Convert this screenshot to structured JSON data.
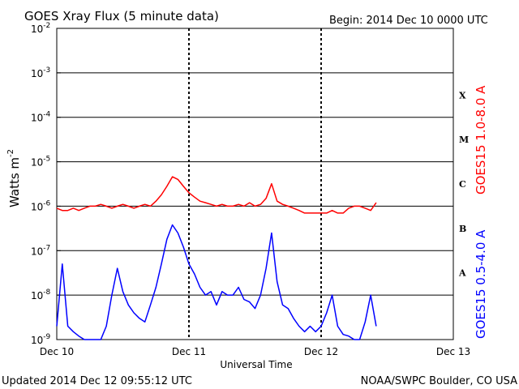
{
  "chart_data": {
    "type": "line",
    "title": "GOES Xray Flux (5 minute data)",
    "begin": "Begin:  2014 Dec 10 0000 UTC",
    "xlabel": "Universal Time",
    "ylabel": "Watts m",
    "ylabel_exp": "-2",
    "x_ticks": [
      "Dec 10",
      "Dec 11",
      "Dec 12",
      "Dec 13"
    ],
    "y_scale": "log",
    "ylim": [
      1e-09,
      0.01
    ],
    "y_ticks": [
      {
        "base": "10",
        "exp": "-2"
      },
      {
        "base": "10",
        "exp": "-3"
      },
      {
        "base": "10",
        "exp": "-4"
      },
      {
        "base": "10",
        "exp": "-5"
      },
      {
        "base": "10",
        "exp": "-6"
      },
      {
        "base": "10",
        "exp": "-7"
      },
      {
        "base": "10",
        "exp": "-8"
      },
      {
        "base": "10",
        "exp": "-9"
      }
    ],
    "flare_classes": [
      "X",
      "M",
      "C",
      "B",
      "A"
    ],
    "grid": "horizontal at each decade, dashed vertical at day boundaries",
    "series": [
      {
        "name": "GOES15 1.0-8.0 A",
        "color": "#ff0000",
        "x_hours": [
          0,
          1,
          2,
          3,
          4,
          5,
          6,
          7,
          8,
          9,
          10,
          11,
          12,
          13,
          14,
          15,
          16,
          17,
          18,
          19,
          20,
          21,
          22,
          23,
          24,
          25,
          26,
          27,
          28,
          29,
          30,
          31,
          32,
          33,
          34,
          35,
          36,
          37,
          38,
          39,
          40,
          41,
          42,
          43,
          44,
          45,
          46,
          47,
          48,
          49,
          50,
          51,
          52,
          53,
          54,
          55,
          56,
          57,
          58
        ],
        "values": [
          9e-07,
          8e-07,
          8e-07,
          9e-07,
          8e-07,
          9e-07,
          1e-06,
          1e-06,
          1.1e-06,
          1e-06,
          9e-07,
          1e-06,
          1.1e-06,
          1e-06,
          9e-07,
          1e-06,
          1.1e-06,
          1e-06,
          1.3e-06,
          1.8e-06,
          2.8e-06,
          4.6e-06,
          4e-06,
          2.8e-06,
          2e-06,
          1.6e-06,
          1.3e-06,
          1.2e-06,
          1.1e-06,
          1e-06,
          1.1e-06,
          1e-06,
          1e-06,
          1.1e-06,
          1e-06,
          1.2e-06,
          1e-06,
          1.1e-06,
          1.5e-06,
          3.2e-06,
          1.3e-06,
          1.1e-06,
          1e-06,
          9e-07,
          8e-07,
          7e-07,
          7e-07,
          7e-07,
          7e-07,
          7e-07,
          8e-07,
          7e-07,
          7e-07,
          9e-07,
          1e-06,
          1e-06,
          9e-07,
          8e-07,
          1.2e-06
        ]
      },
      {
        "name": "GOES15 0.5-4.0 A",
        "color": "#0000ff",
        "x_hours": [
          0,
          1,
          2,
          3,
          4,
          5,
          6,
          7,
          8,
          9,
          10,
          11,
          12,
          13,
          14,
          15,
          16,
          17,
          18,
          19,
          20,
          21,
          22,
          23,
          24,
          25,
          26,
          27,
          28,
          29,
          30,
          31,
          32,
          33,
          34,
          35,
          36,
          37,
          38,
          39,
          40,
          41,
          42,
          43,
          44,
          45,
          46,
          47,
          48,
          49,
          50,
          51,
          52,
          53,
          54,
          55,
          56,
          57,
          58
        ],
        "values": [
          2e-09,
          5e-08,
          2e-09,
          1.5e-09,
          1.2e-09,
          1e-09,
          1e-09,
          1e-09,
          1e-09,
          2e-09,
          1e-08,
          4e-08,
          1.2e-08,
          6e-09,
          4e-09,
          3e-09,
          2.5e-09,
          6e-09,
          1.5e-08,
          5e-08,
          1.8e-07,
          3.8e-07,
          2.5e-07,
          1.2e-07,
          5e-08,
          3e-08,
          1.5e-08,
          1e-08,
          1.2e-08,
          6e-09,
          1.2e-08,
          1e-08,
          1e-08,
          1.5e-08,
          8e-09,
          7e-09,
          5e-09,
          1e-08,
          4e-08,
          2.5e-07,
          2e-08,
          6e-09,
          5e-09,
          3e-09,
          2e-09,
          1.5e-09,
          2e-09,
          1.5e-09,
          2e-09,
          4e-09,
          1e-08,
          2e-09,
          1.3e-09,
          1.2e-09,
          1e-09,
          1e-09,
          2.5e-09,
          1e-08,
          2e-09
        ]
      }
    ],
    "series_labels": [
      "GOES15 1.0-8.0 A",
      "GOES15 0.5-4.0 A"
    ],
    "footer_left": "Updated 2014 Dec 12 09:55:12 UTC",
    "footer_right": "NOAA/SWPC Boulder, CO USA"
  }
}
